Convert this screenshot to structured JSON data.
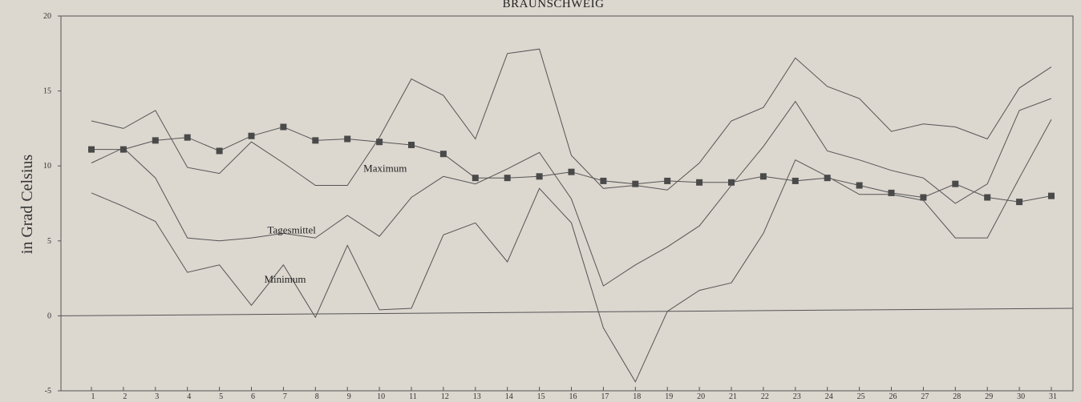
{
  "chart_data": {
    "type": "line",
    "title": "BRAUNSCHWEIG",
    "xlabel": "",
    "ylabel": "in Grad Celsius",
    "xlim": [
      1,
      31
    ],
    "ylim": [
      -5,
      20
    ],
    "yticks": [
      -5,
      0,
      5,
      10,
      15,
      20
    ],
    "x": [
      1,
      2,
      3,
      4,
      5,
      6,
      7,
      8,
      9,
      10,
      11,
      12,
      13,
      14,
      15,
      16,
      17,
      18,
      19,
      20,
      21,
      22,
      23,
      24,
      25,
      26,
      27,
      28,
      29,
      30,
      31
    ],
    "series": [
      {
        "name": "Maximum",
        "color": "#555555",
        "values": [
          13.0,
          12.5,
          13.7,
          9.9,
          9.5,
          11.6,
          10.2,
          8.7,
          8.7,
          11.9,
          15.8,
          14.7,
          11.8,
          17.5,
          17.8,
          10.7,
          8.5,
          8.7,
          8.4,
          10.2,
          13.0,
          13.9,
          17.2,
          15.3,
          14.5,
          12.3,
          12.8,
          12.6,
          11.8,
          15.2,
          16.6
        ]
      },
      {
        "name": "Tagesmittel",
        "color": "#555555",
        "values": [
          10.2,
          11.2,
          9.2,
          5.2,
          5.0,
          5.2,
          5.5,
          5.2,
          6.7,
          5.3,
          7.9,
          9.3,
          8.8,
          9.8,
          10.9,
          7.8,
          2.0,
          3.4,
          4.6,
          6.0,
          8.7,
          11.3,
          14.3,
          11.0,
          10.4,
          9.7,
          9.2,
          7.5,
          8.8,
          13.7,
          14.5
        ]
      },
      {
        "name": "Minimum",
        "color": "#555555",
        "values": [
          8.2,
          7.3,
          6.3,
          2.9,
          3.4,
          0.7,
          3.4,
          -0.1,
          4.7,
          0.4,
          0.5,
          5.4,
          6.2,
          3.6,
          8.5,
          6.2,
          -0.8,
          -4.4,
          0.3,
          1.7,
          2.2,
          5.5,
          10.4,
          9.3,
          8.1,
          8.1,
          7.7,
          5.2,
          5.2,
          9.2,
          13.1
        ]
      },
      {
        "name": "",
        "color": "#555555",
        "marker": "square",
        "values": [
          11.1,
          11.1,
          11.7,
          11.9,
          11.0,
          12.0,
          12.6,
          11.7,
          11.8,
          11.6,
          11.4,
          10.8,
          9.2,
          9.2,
          9.3,
          9.6,
          9.0,
          8.8,
          9.0,
          8.9,
          8.9,
          9.3,
          9.0,
          9.2,
          8.7,
          8.2,
          7.9,
          8.8,
          7.9,
          7.6,
          8.0
        ]
      }
    ],
    "reference_line": {
      "from": 0,
      "to": 0.5
    },
    "annotations": [
      {
        "text": "Maximum",
        "x": 9.5,
        "y": 9.6
      },
      {
        "text": "Tagesmittel",
        "x": 6.5,
        "y": 5.5
      },
      {
        "text": "Minimum",
        "x": 6.4,
        "y": 2.2
      }
    ]
  }
}
